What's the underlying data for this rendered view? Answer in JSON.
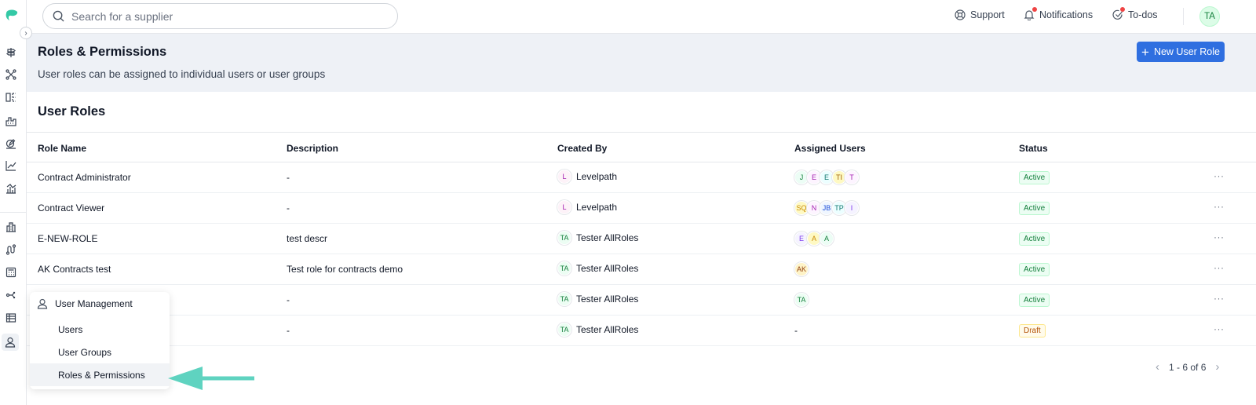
{
  "topbar": {
    "search_placeholder": "Search for a supplier",
    "support_label": "Support",
    "notifications_label": "Notifications",
    "todos_label": "To-dos",
    "user_initials": "TA"
  },
  "rail": {
    "icons": [
      "signpost-icon",
      "network-icon",
      "columns-icon",
      "factory-icon",
      "edit-icon",
      "line-chart-icon",
      "chart-icon",
      "building-icon",
      "route-icon",
      "calculator-icon",
      "share-icon",
      "table-icon",
      "user-icon"
    ]
  },
  "header": {
    "title": "Roles & Permissions",
    "subtitle": "User roles can be assigned to individual users or user groups",
    "new_button_label": "New User Role"
  },
  "section": {
    "title": "User Roles"
  },
  "table": {
    "columns": [
      "Role Name",
      "Description",
      "Created By",
      "Assigned Users",
      "Status"
    ],
    "rows": [
      {
        "name": "Contract Administrator",
        "description": "-",
        "creator": {
          "initials": "L",
          "name": "Levelpath",
          "bg": "#fdf2f8",
          "fg": "#a21caf"
        },
        "users": [
          {
            "initials": "J",
            "bg": "#ecfdf5",
            "fg": "#15803d"
          },
          {
            "initials": "E",
            "bg": "#fdf4ff",
            "fg": "#a21caf"
          },
          {
            "initials": "E",
            "bg": "#ecfeff",
            "fg": "#0f766e"
          },
          {
            "initials": "TI",
            "bg": "#fef9c3",
            "fg": "#a16207"
          },
          {
            "initials": "T",
            "bg": "#fdf4ff",
            "fg": "#a21caf"
          }
        ],
        "users_text": "",
        "status": "Active"
      },
      {
        "name": "Contract Viewer",
        "description": "-",
        "creator": {
          "initials": "L",
          "name": "Levelpath",
          "bg": "#fdf2f8",
          "fg": "#a21caf"
        },
        "users": [
          {
            "initials": "SQ",
            "bg": "#fef9c3",
            "fg": "#ca8a04"
          },
          {
            "initials": "N",
            "bg": "#fdf4ff",
            "fg": "#a21caf"
          },
          {
            "initials": "JB",
            "bg": "#eff6ff",
            "fg": "#1d4ed8"
          },
          {
            "initials": "TP",
            "bg": "#ecfeff",
            "fg": "#0f766e"
          },
          {
            "initials": "I",
            "bg": "#f5f3ff",
            "fg": "#7c3aed"
          }
        ],
        "users_text": "",
        "status": "Active"
      },
      {
        "name": "E-NEW-ROLE",
        "description": "test descr",
        "creator": {
          "initials": "TA",
          "name": "Tester AllRoles",
          "bg": "#ecfdf3",
          "fg": "#15803d"
        },
        "users": [
          {
            "initials": "E",
            "bg": "#f5f3ff",
            "fg": "#7c3aed"
          },
          {
            "initials": "A",
            "bg": "#fef9c3",
            "fg": "#ca8a04"
          },
          {
            "initials": "A",
            "bg": "#ecfdf5",
            "fg": "#15803d"
          }
        ],
        "users_text": "",
        "status": "Active"
      },
      {
        "name": "AK Contracts test",
        "description": "Test role for contracts demo",
        "creator": {
          "initials": "TA",
          "name": "Tester AllRoles",
          "bg": "#ecfdf3",
          "fg": "#15803d"
        },
        "users": [
          {
            "initials": "AK",
            "bg": "#fef3c7",
            "fg": "#92400e"
          }
        ],
        "users_text": "",
        "status": "Active"
      },
      {
        "name": "",
        "description": "-",
        "creator": {
          "initials": "TA",
          "name": "Tester AllRoles",
          "bg": "#ecfdf3",
          "fg": "#15803d"
        },
        "users": [
          {
            "initials": "TA",
            "bg": "#ecfdf3",
            "fg": "#15803d"
          }
        ],
        "users_text": "",
        "status": "Active"
      },
      {
        "name": "",
        "description": "-",
        "creator": {
          "initials": "TA",
          "name": "Tester AllRoles",
          "bg": "#ecfdf3",
          "fg": "#15803d"
        },
        "users": [],
        "users_text": "-",
        "status": "Draft"
      }
    ],
    "row_action": "···"
  },
  "pagination": {
    "text": "1 - 6 of 6",
    "prev": "‹",
    "next": "›"
  },
  "popup": {
    "heading": "User Management",
    "items": [
      "Users",
      "User Groups",
      "Roles & Permissions"
    ],
    "selected_index": 2
  },
  "colors": {
    "primary": "#2f6fe0",
    "accent_arrow": "#5fd3c0",
    "notification_dot": "#ef4444"
  }
}
